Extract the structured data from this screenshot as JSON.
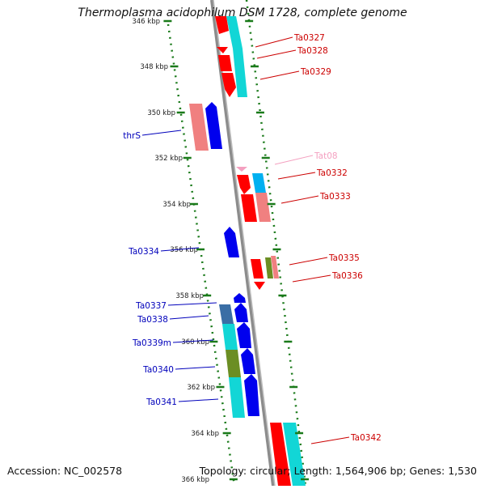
{
  "title": "Thermoplasma acidophilum DSM 1728, complete genome",
  "footer": {
    "accession": "Accession: NC_002578",
    "summary": "Topology: circular; Length: 1,564,906 bp; Genes: 1,530"
  },
  "colors": {
    "backbone": "#888888",
    "tick": "#1a7a1a",
    "right_label": "#cc0000",
    "left_label": "#0000bb",
    "trna_label": "#f4a0c0"
  },
  "ticks": [
    {
      "label": "346 kbp"
    },
    {
      "label": "348 kbp"
    },
    {
      "label": "350 kbp"
    },
    {
      "label": "352 kbp"
    },
    {
      "label": "354 kbp"
    },
    {
      "label": "356 kbp"
    },
    {
      "label": "358 kbp"
    },
    {
      "label": "360 kbp"
    },
    {
      "label": "362 kbp"
    },
    {
      "label": "364 kbp"
    },
    {
      "label": "366 kbp"
    }
  ],
  "genes_right": [
    {
      "label": "Ta0327"
    },
    {
      "label": "Ta0328"
    },
    {
      "label": "Ta0329"
    },
    {
      "label": "Tat08"
    },
    {
      "label": "Ta0332"
    },
    {
      "label": "Ta0333"
    },
    {
      "label": "Ta0335"
    },
    {
      "label": "Ta0336"
    },
    {
      "label": "Ta0342"
    }
  ],
  "genes_left": [
    {
      "label": "thrS"
    },
    {
      "label": "Ta0334"
    },
    {
      "label": "Ta0337"
    },
    {
      "label": "Ta0338"
    },
    {
      "label": "Ta0339m"
    },
    {
      "label": "Ta0340"
    },
    {
      "label": "Ta0341"
    }
  ]
}
